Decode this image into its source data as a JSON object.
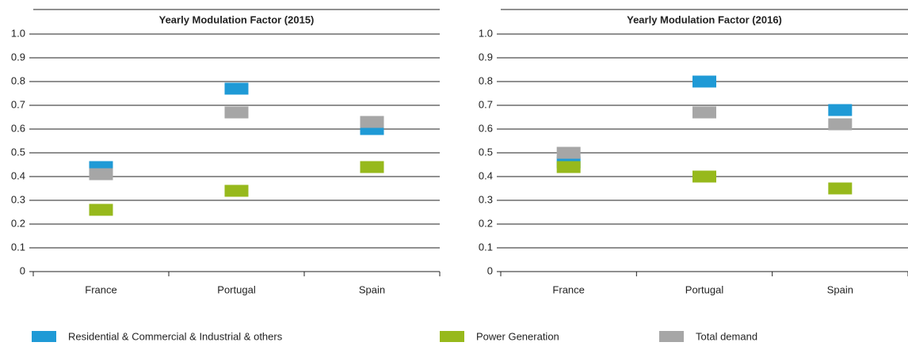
{
  "chart_data": [
    {
      "type": "scatter",
      "title": "Yearly Modulation Factor (2015)",
      "categories": [
        "France",
        "Portugal",
        "Spain"
      ],
      "series": [
        {
          "name": "Residential & Commercial & Industrial & others",
          "color": "#1f9ad6",
          "values": [
            0.44,
            0.77,
            0.6
          ]
        },
        {
          "name": "Power Generation",
          "color": "#97b91c",
          "values": [
            0.26,
            0.34,
            0.44
          ]
        },
        {
          "name": "Total demand",
          "color": "#a6a6a6",
          "values": [
            0.41,
            0.67,
            0.63
          ]
        }
      ],
      "ylim": [
        0,
        1
      ],
      "yticks": [
        0,
        0.1,
        0.2,
        0.3,
        0.4,
        0.5,
        0.6,
        0.7,
        0.8,
        0.9,
        {
          "value": 1,
          "label": "1.0"
        }
      ],
      "grid": true
    },
    {
      "type": "scatter",
      "title": "Yearly Modulation Factor (2016)",
      "categories": [
        "France",
        "Portugal",
        "Spain"
      ],
      "series": [
        {
          "color": "#1f9ad6",
          "values": [
            0.46,
            0.8,
            0.68
          ]
        },
        {
          "color": "#97b91c",
          "values": [
            0.44,
            0.4,
            0.35
          ]
        },
        {
          "color": "#a6a6a6",
          "values": [
            0.5,
            0.67,
            0.62
          ]
        }
      ],
      "ylim": [
        0,
        1
      ],
      "yticks": [
        0,
        0.1,
        0.2,
        0.3,
        0.4,
        0.5,
        0.6,
        0.7,
        0.8,
        0.9,
        {
          "value": 1,
          "label": "1.0"
        }
      ],
      "grid": true
    }
  ]
}
